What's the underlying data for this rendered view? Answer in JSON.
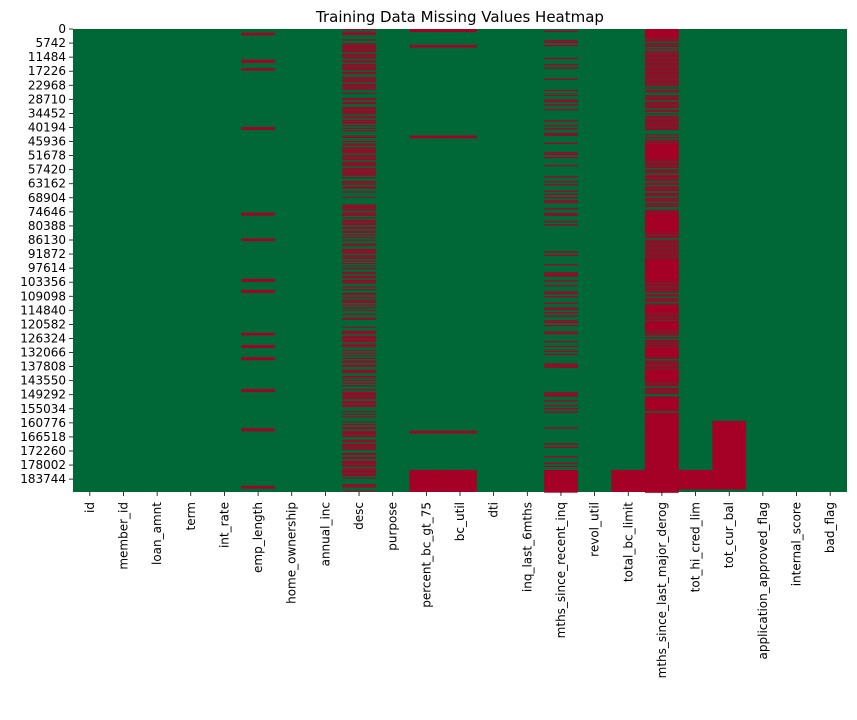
{
  "chart_data": {
    "type": "heatmap",
    "title": "Training Data Missing Values Heatmap",
    "xlabel": "",
    "ylabel": "",
    "colors": {
      "present": "#006837",
      "missing": "#a50026"
    },
    "rows_total": 189000,
    "y_ticks": [
      0,
      5742,
      11484,
      17226,
      22968,
      28710,
      34452,
      40194,
      45936,
      51678,
      57420,
      63162,
      68904,
      74646,
      80388,
      86130,
      91872,
      97614,
      103356,
      109098,
      114840,
      120582,
      126324,
      132066,
      137808,
      143550,
      149292,
      155034,
      160776,
      166518,
      172260,
      178002,
      183744
    ],
    "columns": [
      "id",
      "member_id",
      "loan_amnt",
      "term",
      "int_rate",
      "emp_length",
      "home_ownership",
      "annual_inc",
      "desc",
      "purpose",
      "percent_bc_gt_75",
      "bc_util",
      "dti",
      "inq_last_6mths",
      "mths_since_recent_inq",
      "revol_util",
      "total_bc_limit",
      "mths_since_last_major_derog",
      "tot_hi_cred_lim",
      "tot_cur_bal",
      "application_approved_flag",
      "internal_score",
      "bad_flag"
    ],
    "missing": [
      {
        "column": "emp_length",
        "pattern": "sparse",
        "ranges": [
          [
            1500,
            2600
          ],
          [
            12500,
            13800
          ],
          [
            16000,
            17000
          ],
          [
            40000,
            41200
          ],
          [
            75000,
            76200
          ],
          [
            85500,
            86600
          ],
          [
            102000,
            103200
          ],
          [
            106500,
            107700
          ],
          [
            124000,
            125100
          ],
          [
            129000,
            130200
          ],
          [
            134000,
            135200
          ],
          [
            147000,
            148200
          ],
          [
            163000,
            164200
          ],
          [
            186500,
            187600
          ]
        ]
      },
      {
        "column": "desc",
        "pattern": "dense",
        "density": 0.6,
        "ranges": []
      },
      {
        "column": "percent_bc_gt_75",
        "pattern": "sparse",
        "ranges": [
          [
            0,
            1200
          ],
          [
            6500,
            7600
          ],
          [
            43500,
            44600
          ],
          [
            164000,
            165100
          ],
          [
            180000,
            189000
          ]
        ]
      },
      {
        "column": "bc_util",
        "pattern": "sparse",
        "ranges": [
          [
            0,
            1200
          ],
          [
            6500,
            7600
          ],
          [
            43500,
            44600
          ],
          [
            164000,
            165100
          ],
          [
            180000,
            189000
          ]
        ]
      },
      {
        "column": "mths_since_recent_inq",
        "pattern": "striped",
        "density": 0.3,
        "ranges": [
          [
            180000,
            189000
          ]
        ]
      },
      {
        "column": "total_bc_limit",
        "pattern": "sparse",
        "ranges": [
          [
            180000,
            189000
          ]
        ]
      },
      {
        "column": "mths_since_last_major_derog",
        "pattern": "dense",
        "density": 0.8,
        "ranges": [
          [
            0,
            3500
          ],
          [
            47000,
            53000
          ],
          [
            75000,
            83000
          ],
          [
            94000,
            103000
          ],
          [
            113000,
            116000
          ],
          [
            119000,
            123000
          ],
          [
            130000,
            134000
          ],
          [
            139000,
            144000
          ],
          [
            150000,
            156000
          ],
          [
            157000,
            189000
          ]
        ]
      },
      {
        "column": "tot_hi_cred_lim",
        "pattern": "sparse",
        "ranges": [
          [
            180000,
            188000
          ]
        ]
      },
      {
        "column": "tot_cur_bal",
        "pattern": "sparse",
        "ranges": [
          [
            160000,
            188000
          ]
        ]
      }
    ]
  }
}
